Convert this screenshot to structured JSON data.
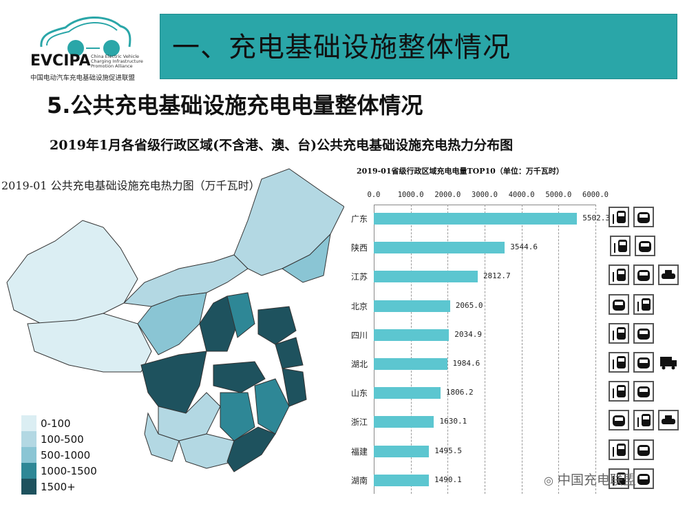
{
  "logo": {
    "name": "EVCIPA",
    "english": [
      "China Electric Vehicle",
      "Charging Infrastructure",
      "Promotion Alliance"
    ],
    "chinese": "中国电动汽车充电基础设施促进联盟"
  },
  "banner": {
    "title": "一、充电基础设施整体情况",
    "color": "#2aa6a8"
  },
  "section_title": "5.公共充电基础设施充电电量整体情况",
  "subtitle": "2019年1月各省级行政区域(不含港、澳、台)公共充电基础设施充电热力分布图",
  "map": {
    "title": "2019-01 公共充电基础设施充电热力图（万千瓦时）",
    "legend": [
      {
        "label": "0-100",
        "color": "#dbeef3"
      },
      {
        "label": "100-500",
        "color": "#b3d8e3"
      },
      {
        "label": "500-1000",
        "color": "#8ac5d4"
      },
      {
        "label": "1000-1500",
        "color": "#2e8796"
      },
      {
        "label": "1500+",
        "color": "#1e525e"
      }
    ]
  },
  "chart_data": {
    "type": "bar",
    "orientation": "horizontal",
    "title": "2019-01省级行政区域充电电量TOP10（单位：万千瓦时）",
    "categories": [
      "广东",
      "陕西",
      "江苏",
      "北京",
      "四川",
      "湖北",
      "山东",
      "浙江",
      "福建",
      "湖南"
    ],
    "values": [
      5502.3,
      3544.6,
      2812.7,
      2065.0,
      2034.9,
      1984.6,
      1806.2,
      1630.1,
      1495.5,
      1490.1
    ],
    "value_labels": [
      "5502.3",
      "3544.6",
      "2812.7",
      "2065.0",
      "2034.9",
      "1984.6",
      "1806.2",
      "1630.1",
      "1495.5",
      "1490.1"
    ],
    "xticks": [
      "0.0",
      "1000.0",
      "2000.0",
      "3000.0",
      "4000.0",
      "5000.0",
      "6000.0"
    ],
    "xlim": [
      0,
      6000
    ],
    "grid": true,
    "bar_color": "#5cc6d0",
    "vehicle_icons": [
      [
        "bus",
        "car"
      ],
      [
        "bus",
        "car"
      ],
      [
        "bus",
        "car",
        "taxi"
      ],
      [
        "car",
        "bus"
      ],
      [
        "bus",
        "car"
      ],
      [
        "bus",
        "car",
        "truck"
      ],
      [
        "bus",
        "car"
      ],
      [
        "car",
        "bus",
        "taxi"
      ],
      [
        "bus",
        "car"
      ],
      [
        "bus",
        "car"
      ]
    ]
  },
  "watermark": "中国充电联盟"
}
